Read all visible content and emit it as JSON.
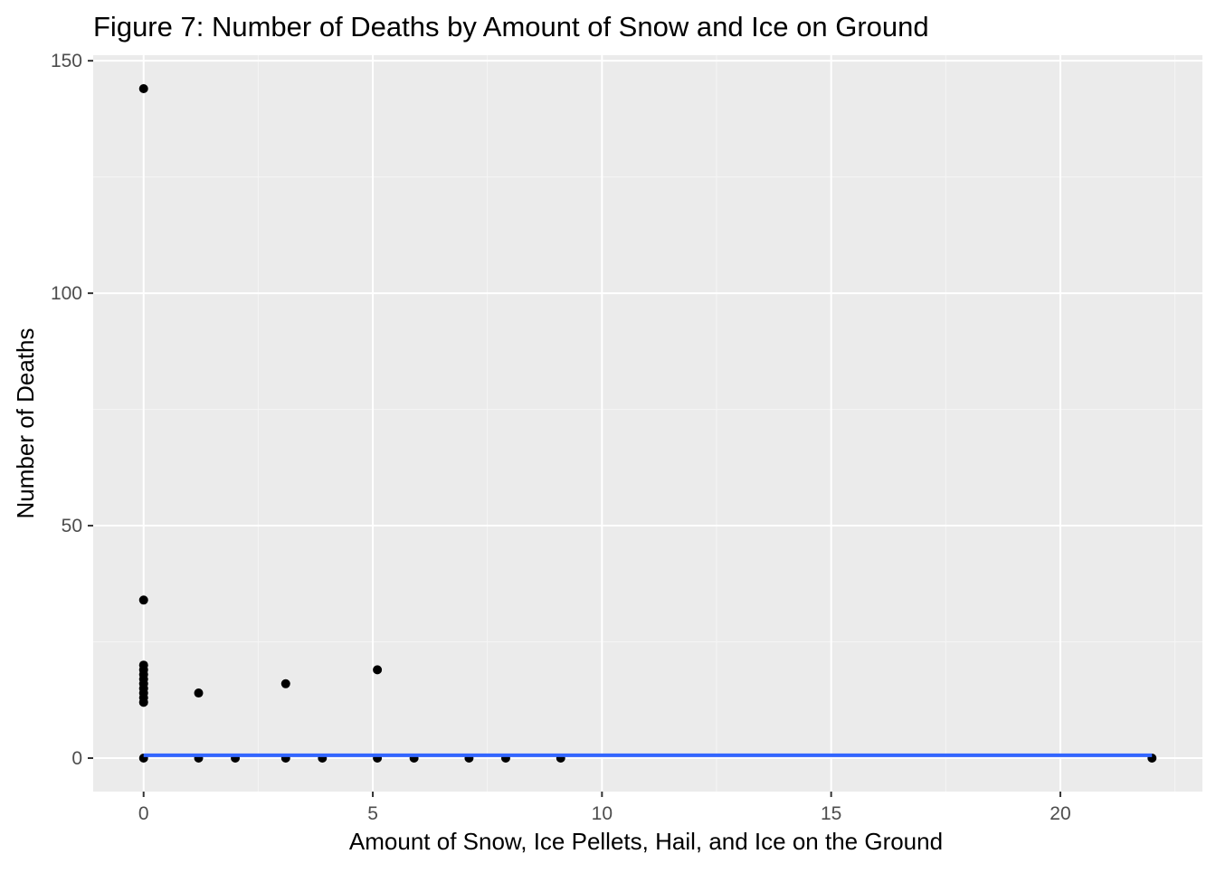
{
  "chart_data": {
    "type": "scatter",
    "title": "Figure 7: Number of Deaths by Amount of Snow and Ice on Ground",
    "xlabel": "Amount of Snow, Ice Pellets, Hail, and Ice on the Ground",
    "ylabel": "Number of Deaths",
    "xlim": [
      -1.1,
      23.1
    ],
    "ylim": [
      -7.2,
      151.2
    ],
    "x_ticks": [
      0,
      5,
      10,
      15,
      20
    ],
    "x_tick_labels": [
      "0",
      "5",
      "10",
      "15",
      "20"
    ],
    "y_ticks": [
      0,
      50,
      100,
      150
    ],
    "y_tick_labels": [
      "0",
      "50",
      "100",
      "150"
    ],
    "grid": true,
    "legend": "none",
    "series": [
      {
        "point_color": "#000000",
        "points": [
          {
            "x": 0,
            "y": 144
          },
          {
            "x": 0,
            "y": 34
          },
          {
            "x": 0,
            "y": 20
          },
          {
            "x": 0,
            "y": 19
          },
          {
            "x": 0,
            "y": 18
          },
          {
            "x": 0,
            "y": 17
          },
          {
            "x": 0,
            "y": 16
          },
          {
            "x": 0,
            "y": 15
          },
          {
            "x": 0,
            "y": 14
          },
          {
            "x": 0,
            "y": 13
          },
          {
            "x": 0,
            "y": 12
          },
          {
            "x": 0,
            "y": 0
          },
          {
            "x": 1.2,
            "y": 14
          },
          {
            "x": 1.2,
            "y": 0
          },
          {
            "x": 2,
            "y": 0
          },
          {
            "x": 3.1,
            "y": 16
          },
          {
            "x": 3.1,
            "y": 0
          },
          {
            "x": 3.9,
            "y": 0
          },
          {
            "x": 5.1,
            "y": 19
          },
          {
            "x": 5.1,
            "y": 0
          },
          {
            "x": 5.9,
            "y": 0
          },
          {
            "x": 7.1,
            "y": 0
          },
          {
            "x": 7.9,
            "y": 0
          },
          {
            "x": 9.1,
            "y": 0
          },
          {
            "x": 22,
            "y": 0
          }
        ]
      }
    ],
    "trend_line": {
      "color": "#3366ff",
      "x": [
        0,
        22
      ],
      "y": [
        0.6,
        0.6
      ]
    }
  },
  "colors": {
    "panel_background": "#ebebeb",
    "grid_major": "#ffffff",
    "grid_minor": "#f5f5f5",
    "tick_color": "#333333"
  }
}
